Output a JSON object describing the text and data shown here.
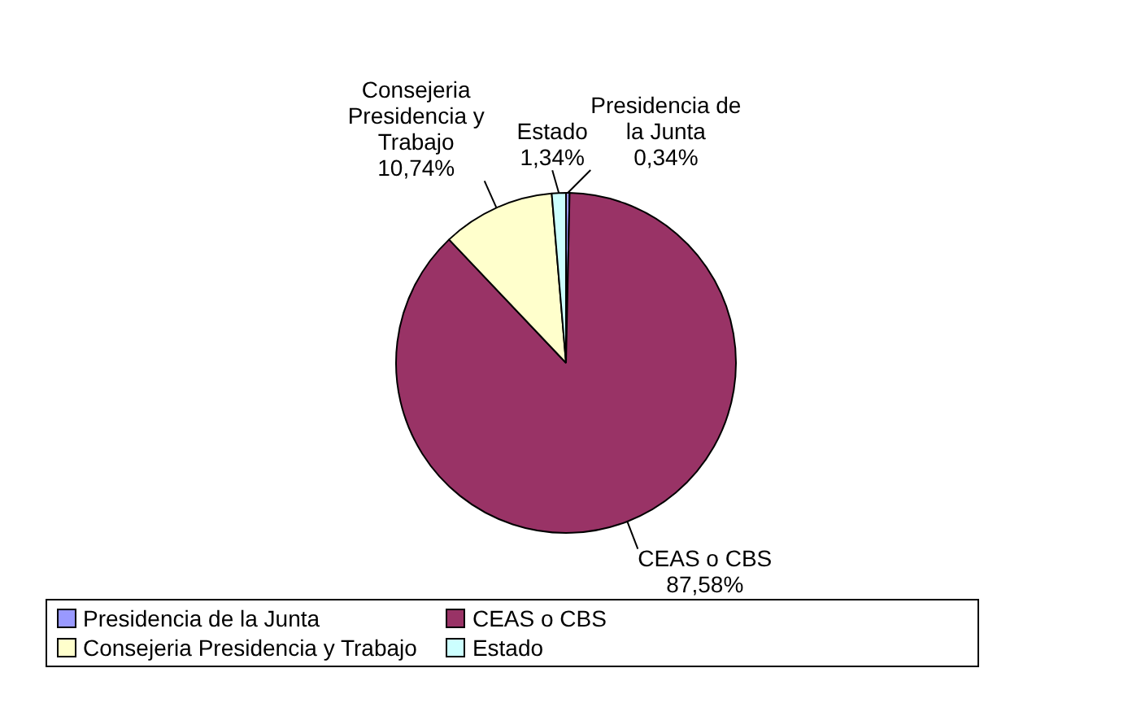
{
  "chart_data": {
    "type": "pie",
    "categories": [
      "Presidencia de la Junta",
      "CEAS o CBS",
      "Consejeria Presidencia y Trabajo",
      "Estado"
    ],
    "values": [
      0.34,
      87.58,
      10.74,
      1.34
    ],
    "colors": [
      "#9999ff",
      "#993366",
      "#ffffcc",
      "#ccffff"
    ],
    "value_labels": [
      "0,34%",
      "87,58%",
      "10,74%",
      "1,34%"
    ],
    "legend": "bottom"
  }
}
